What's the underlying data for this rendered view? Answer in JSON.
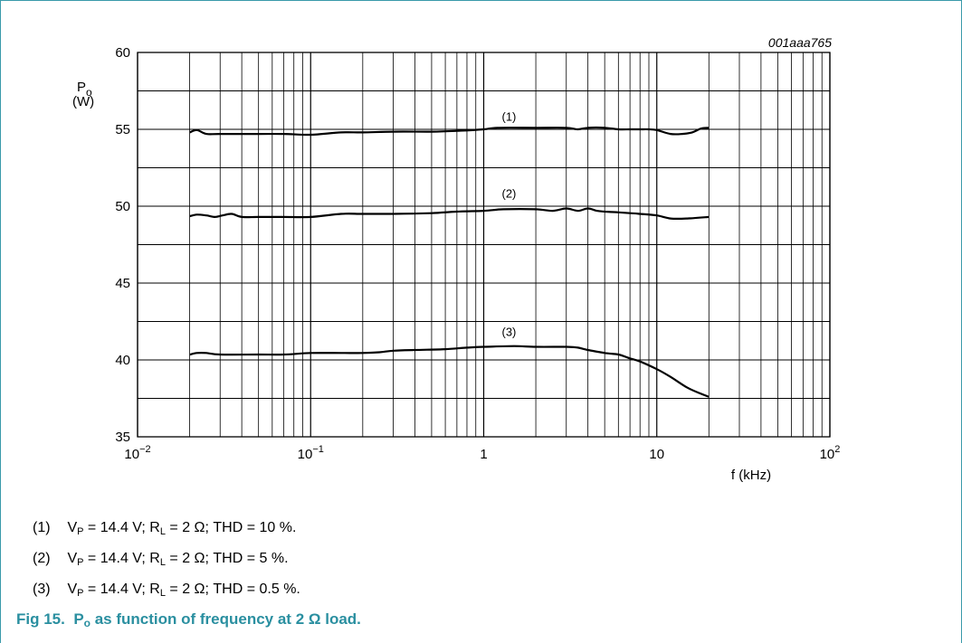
{
  "figure_id": "001aaa765",
  "chart_data": {
    "type": "line",
    "x_scale": "log",
    "xlim": [
      0.01,
      100
    ],
    "ylim": [
      35,
      60
    ],
    "y_ticks": [
      35,
      40,
      45,
      50,
      55,
      60
    ],
    "x_tick_labels": [
      {
        "value": 0.01,
        "base": "10",
        "exp": "−2"
      },
      {
        "value": 0.1,
        "base": "10",
        "exp": "−1"
      },
      {
        "value": 1,
        "base": "1",
        "exp": ""
      },
      {
        "value": 10,
        "base": "10",
        "exp": ""
      },
      {
        "value": 100,
        "base": "10",
        "exp": "2"
      }
    ],
    "xlabel": "f (kHz)",
    "ylabel_main": "P",
    "ylabel_sub": "o",
    "ylabel_unit": "(W)",
    "grid": true,
    "series": [
      {
        "name": "(1)",
        "label_at": [
          1.4,
          55.8
        ],
        "points": [
          [
            0.02,
            54.8
          ],
          [
            0.022,
            54.95
          ],
          [
            0.025,
            54.7
          ],
          [
            0.03,
            54.7
          ],
          [
            0.05,
            54.7
          ],
          [
            0.07,
            54.7
          ],
          [
            0.1,
            54.65
          ],
          [
            0.15,
            54.8
          ],
          [
            0.2,
            54.8
          ],
          [
            0.3,
            54.85
          ],
          [
            0.5,
            54.85
          ],
          [
            0.7,
            54.9
          ],
          [
            1,
            55.0
          ],
          [
            1.2,
            55.1
          ],
          [
            2,
            55.1
          ],
          [
            3,
            55.1
          ],
          [
            3.5,
            55.0
          ],
          [
            4,
            55.1
          ],
          [
            5,
            55.1
          ],
          [
            6,
            55.0
          ],
          [
            7,
            55.0
          ],
          [
            8,
            55.0
          ],
          [
            9,
            55.0
          ],
          [
            10,
            54.95
          ],
          [
            12,
            54.7
          ],
          [
            14,
            54.7
          ],
          [
            16,
            54.8
          ],
          [
            18,
            55.05
          ],
          [
            20,
            55.1
          ]
        ]
      },
      {
        "name": "(2)",
        "label_at": [
          1.4,
          50.8
        ],
        "points": [
          [
            0.02,
            49.35
          ],
          [
            0.022,
            49.45
          ],
          [
            0.025,
            49.4
          ],
          [
            0.028,
            49.3
          ],
          [
            0.031,
            49.4
          ],
          [
            0.035,
            49.5
          ],
          [
            0.04,
            49.3
          ],
          [
            0.05,
            49.3
          ],
          [
            0.07,
            49.3
          ],
          [
            0.1,
            49.3
          ],
          [
            0.15,
            49.5
          ],
          [
            0.2,
            49.5
          ],
          [
            0.3,
            49.5
          ],
          [
            0.5,
            49.55
          ],
          [
            0.7,
            49.65
          ],
          [
            1,
            49.7
          ],
          [
            1.3,
            49.8
          ],
          [
            2,
            49.8
          ],
          [
            2.5,
            49.7
          ],
          [
            3,
            49.85
          ],
          [
            3.5,
            49.7
          ],
          [
            4,
            49.85
          ],
          [
            4.5,
            49.7
          ],
          [
            5,
            49.65
          ],
          [
            6,
            49.6
          ],
          [
            7,
            49.55
          ],
          [
            8,
            49.5
          ],
          [
            10,
            49.4
          ],
          [
            12,
            49.2
          ],
          [
            15,
            49.2
          ],
          [
            20,
            49.3
          ]
        ]
      },
      {
        "name": "(3)",
        "label_at": [
          1.4,
          41.8
        ],
        "points": [
          [
            0.02,
            40.35
          ],
          [
            0.022,
            40.45
          ],
          [
            0.025,
            40.45
          ],
          [
            0.03,
            40.35
          ],
          [
            0.05,
            40.35
          ],
          [
            0.07,
            40.35
          ],
          [
            0.1,
            40.45
          ],
          [
            0.15,
            40.45
          ],
          [
            0.2,
            40.45
          ],
          [
            0.25,
            40.5
          ],
          [
            0.3,
            40.6
          ],
          [
            0.4,
            40.65
          ],
          [
            0.6,
            40.7
          ],
          [
            0.8,
            40.8
          ],
          [
            1,
            40.85
          ],
          [
            1.5,
            40.9
          ],
          [
            2,
            40.85
          ],
          [
            3,
            40.85
          ],
          [
            3.5,
            40.8
          ],
          [
            4,
            40.65
          ],
          [
            5,
            40.45
          ],
          [
            6,
            40.35
          ],
          [
            7,
            40.1
          ],
          [
            8,
            39.9
          ],
          [
            10,
            39.4
          ],
          [
            12,
            38.9
          ],
          [
            15,
            38.2
          ],
          [
            18,
            37.8
          ],
          [
            20,
            37.6
          ]
        ]
      }
    ]
  },
  "notes": [
    {
      "num": "(1)",
      "v": "V",
      "v_sub": "P",
      "v_val": " = 14.4 V; ",
      "r": "R",
      "r_sub": "L",
      "r_val": " = 2 Ω; ",
      "thd": "THD = 10 %."
    },
    {
      "num": "(2)",
      "v": "V",
      "v_sub": "P",
      "v_val": " = 14.4 V; ",
      "r": "R",
      "r_sub": "L",
      "r_val": " = 2 Ω; ",
      "thd": "THD = 5 %."
    },
    {
      "num": "(3)",
      "v": "V",
      "v_sub": "P",
      "v_val": " = 14.4 V; ",
      "r": "R",
      "r_sub": "L",
      "r_val": " = 2 Ω; ",
      "thd": "THD = 0.5 %."
    }
  ],
  "caption": {
    "fig": "Fig 15.",
    "p": "P",
    "p_sub": "o",
    "rest": " as function of frequency at 2 Ω load."
  },
  "colors": {
    "frame": "#3a9aaa",
    "caption": "#2a8fa0",
    "grid": "#000000",
    "curve": "#000000"
  }
}
